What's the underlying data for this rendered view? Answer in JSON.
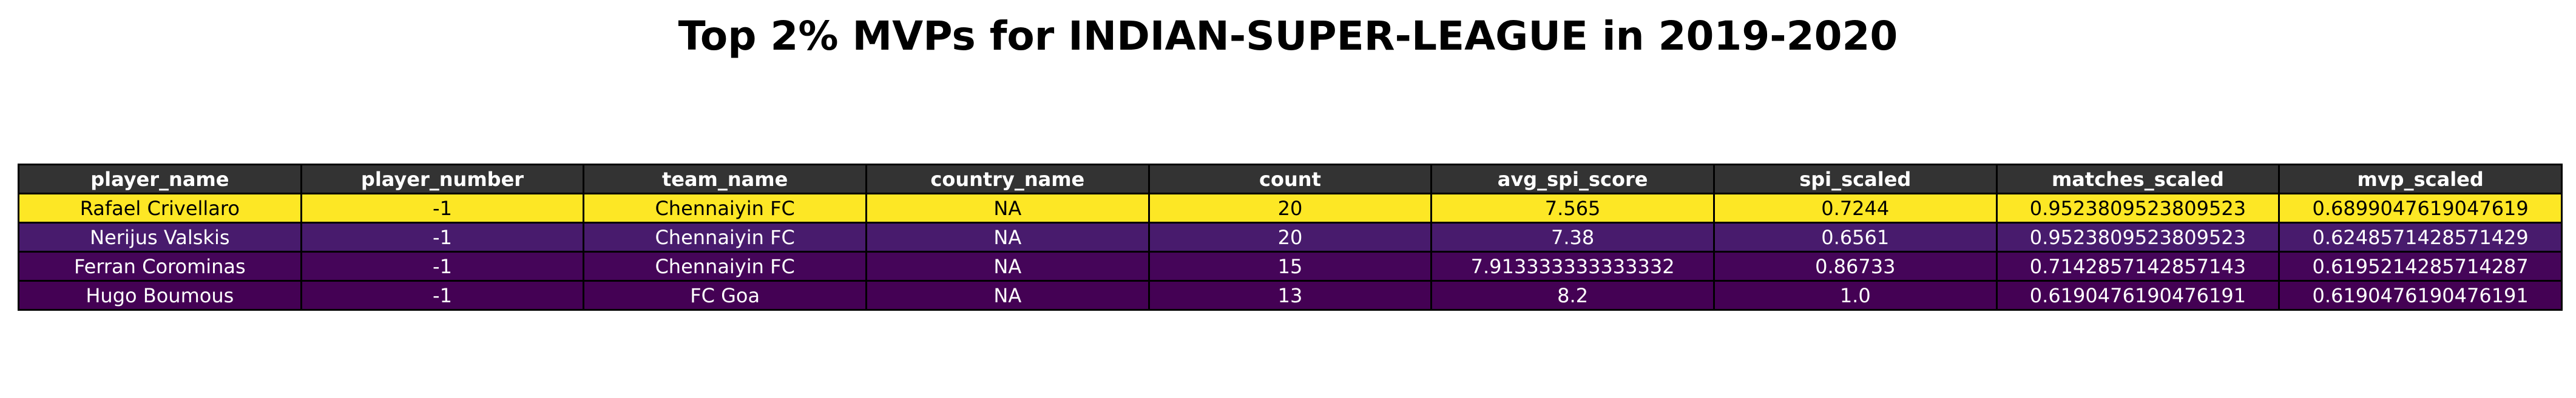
{
  "title": "Top 2% MVPs for INDIAN-SUPER-LEAGUE in 2019-2020",
  "chart_data": {
    "type": "table",
    "title": "Top 2% MVPs for INDIAN-SUPER-LEAGUE in 2019-2020",
    "columns": [
      "player_name",
      "player_number",
      "team_name",
      "country_name",
      "count",
      "avg_spi_score",
      "spi_scaled",
      "matches_scaled",
      "mvp_scaled"
    ],
    "rows": [
      [
        "Rafael Crivellaro",
        "-1",
        "Chennaiyin FC",
        "NA",
        "20",
        "7.565",
        "0.7244",
        "0.9523809523809523",
        "0.6899047619047619"
      ],
      [
        "Nerijus Valskis",
        "-1",
        "Chennaiyin FC",
        "NA",
        "20",
        "7.38",
        "0.6561",
        "0.9523809523809523",
        "0.6248571428571429"
      ],
      [
        "Ferran Corominas",
        "-1",
        "Chennaiyin FC",
        "NA",
        "15",
        "7.913333333333332",
        "0.86733",
        "0.7142857142857143",
        "0.6195214285714287"
      ],
      [
        "Hugo Boumous",
        "-1",
        "FC Goa",
        "NA",
        "13",
        "8.2",
        "1.0",
        "0.6190476190476191",
        "0.6190476190476191"
      ]
    ],
    "header_color": "#333333",
    "row_colors": [
      "#fde725",
      "#481b6d",
      "#450559",
      "#440154"
    ]
  }
}
